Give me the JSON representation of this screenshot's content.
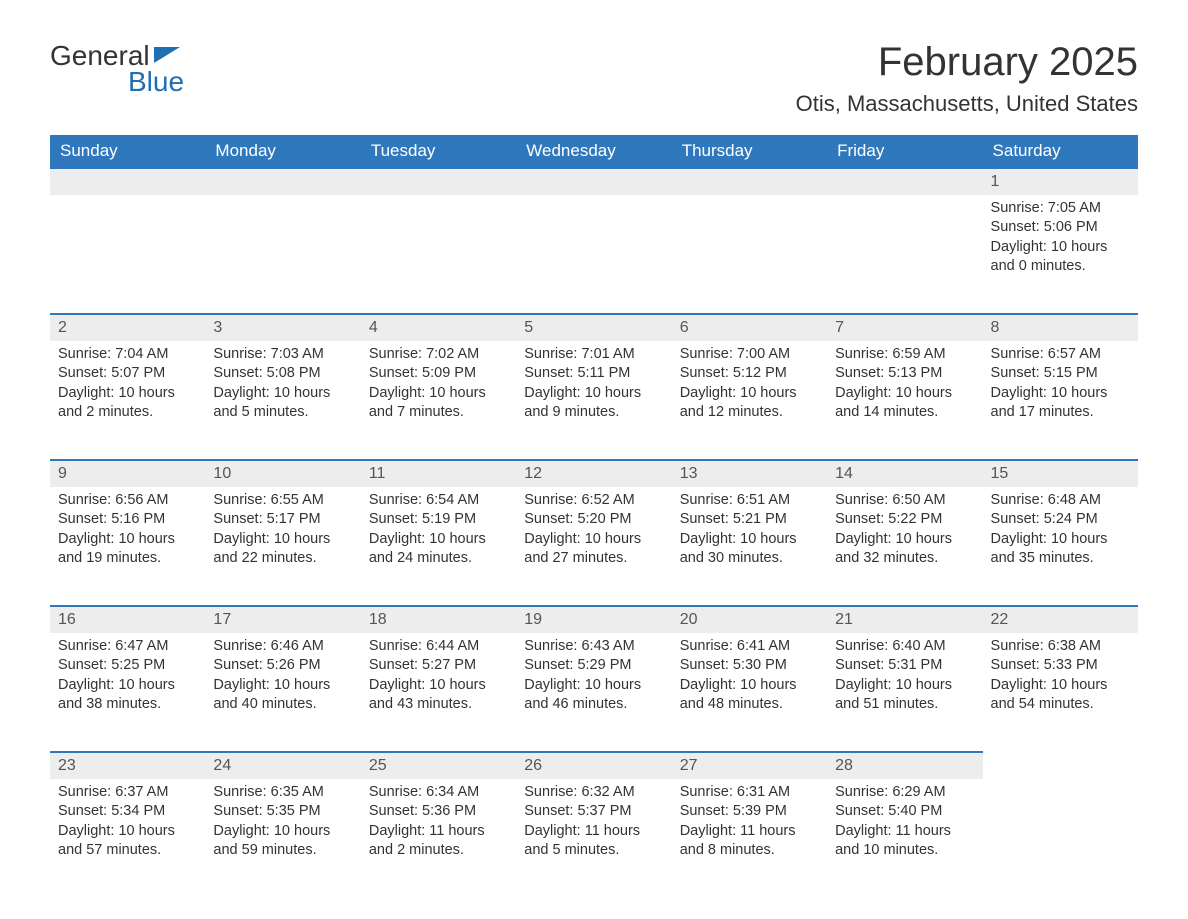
{
  "brand": {
    "word1": "General",
    "word2": "Blue",
    "brand_color": "#1f6fb2"
  },
  "title": "February 2025",
  "location": "Otis, Massachusetts, United States",
  "colors": {
    "header_bg": "#2f78bd",
    "header_text": "#ffffff",
    "row_accent": "#2f78bd",
    "daynum_bg": "#ededed",
    "text": "#333333",
    "background": "#ffffff"
  },
  "day_headers": [
    "Sunday",
    "Monday",
    "Tuesday",
    "Wednesday",
    "Thursday",
    "Friday",
    "Saturday"
  ],
  "weeks": [
    [
      {
        "num": "",
        "sunrise": "",
        "sunset": "",
        "daylight": ""
      },
      {
        "num": "",
        "sunrise": "",
        "sunset": "",
        "daylight": ""
      },
      {
        "num": "",
        "sunrise": "",
        "sunset": "",
        "daylight": ""
      },
      {
        "num": "",
        "sunrise": "",
        "sunset": "",
        "daylight": ""
      },
      {
        "num": "",
        "sunrise": "",
        "sunset": "",
        "daylight": ""
      },
      {
        "num": "",
        "sunrise": "",
        "sunset": "",
        "daylight": ""
      },
      {
        "num": "1",
        "sunrise": "Sunrise: 7:05 AM",
        "sunset": "Sunset: 5:06 PM",
        "daylight": "Daylight: 10 hours and 0 minutes."
      }
    ],
    [
      {
        "num": "2",
        "sunrise": "Sunrise: 7:04 AM",
        "sunset": "Sunset: 5:07 PM",
        "daylight": "Daylight: 10 hours and 2 minutes."
      },
      {
        "num": "3",
        "sunrise": "Sunrise: 7:03 AM",
        "sunset": "Sunset: 5:08 PM",
        "daylight": "Daylight: 10 hours and 5 minutes."
      },
      {
        "num": "4",
        "sunrise": "Sunrise: 7:02 AM",
        "sunset": "Sunset: 5:09 PM",
        "daylight": "Daylight: 10 hours and 7 minutes."
      },
      {
        "num": "5",
        "sunrise": "Sunrise: 7:01 AM",
        "sunset": "Sunset: 5:11 PM",
        "daylight": "Daylight: 10 hours and 9 minutes."
      },
      {
        "num": "6",
        "sunrise": "Sunrise: 7:00 AM",
        "sunset": "Sunset: 5:12 PM",
        "daylight": "Daylight: 10 hours and 12 minutes."
      },
      {
        "num": "7",
        "sunrise": "Sunrise: 6:59 AM",
        "sunset": "Sunset: 5:13 PM",
        "daylight": "Daylight: 10 hours and 14 minutes."
      },
      {
        "num": "8",
        "sunrise": "Sunrise: 6:57 AM",
        "sunset": "Sunset: 5:15 PM",
        "daylight": "Daylight: 10 hours and 17 minutes."
      }
    ],
    [
      {
        "num": "9",
        "sunrise": "Sunrise: 6:56 AM",
        "sunset": "Sunset: 5:16 PM",
        "daylight": "Daylight: 10 hours and 19 minutes."
      },
      {
        "num": "10",
        "sunrise": "Sunrise: 6:55 AM",
        "sunset": "Sunset: 5:17 PM",
        "daylight": "Daylight: 10 hours and 22 minutes."
      },
      {
        "num": "11",
        "sunrise": "Sunrise: 6:54 AM",
        "sunset": "Sunset: 5:19 PM",
        "daylight": "Daylight: 10 hours and 24 minutes."
      },
      {
        "num": "12",
        "sunrise": "Sunrise: 6:52 AM",
        "sunset": "Sunset: 5:20 PM",
        "daylight": "Daylight: 10 hours and 27 minutes."
      },
      {
        "num": "13",
        "sunrise": "Sunrise: 6:51 AM",
        "sunset": "Sunset: 5:21 PM",
        "daylight": "Daylight: 10 hours and 30 minutes."
      },
      {
        "num": "14",
        "sunrise": "Sunrise: 6:50 AM",
        "sunset": "Sunset: 5:22 PM",
        "daylight": "Daylight: 10 hours and 32 minutes."
      },
      {
        "num": "15",
        "sunrise": "Sunrise: 6:48 AM",
        "sunset": "Sunset: 5:24 PM",
        "daylight": "Daylight: 10 hours and 35 minutes."
      }
    ],
    [
      {
        "num": "16",
        "sunrise": "Sunrise: 6:47 AM",
        "sunset": "Sunset: 5:25 PM",
        "daylight": "Daylight: 10 hours and 38 minutes."
      },
      {
        "num": "17",
        "sunrise": "Sunrise: 6:46 AM",
        "sunset": "Sunset: 5:26 PM",
        "daylight": "Daylight: 10 hours and 40 minutes."
      },
      {
        "num": "18",
        "sunrise": "Sunrise: 6:44 AM",
        "sunset": "Sunset: 5:27 PM",
        "daylight": "Daylight: 10 hours and 43 minutes."
      },
      {
        "num": "19",
        "sunrise": "Sunrise: 6:43 AM",
        "sunset": "Sunset: 5:29 PM",
        "daylight": "Daylight: 10 hours and 46 minutes."
      },
      {
        "num": "20",
        "sunrise": "Sunrise: 6:41 AM",
        "sunset": "Sunset: 5:30 PM",
        "daylight": "Daylight: 10 hours and 48 minutes."
      },
      {
        "num": "21",
        "sunrise": "Sunrise: 6:40 AM",
        "sunset": "Sunset: 5:31 PM",
        "daylight": "Daylight: 10 hours and 51 minutes."
      },
      {
        "num": "22",
        "sunrise": "Sunrise: 6:38 AM",
        "sunset": "Sunset: 5:33 PM",
        "daylight": "Daylight: 10 hours and 54 minutes."
      }
    ],
    [
      {
        "num": "23",
        "sunrise": "Sunrise: 6:37 AM",
        "sunset": "Sunset: 5:34 PM",
        "daylight": "Daylight: 10 hours and 57 minutes."
      },
      {
        "num": "24",
        "sunrise": "Sunrise: 6:35 AM",
        "sunset": "Sunset: 5:35 PM",
        "daylight": "Daylight: 10 hours and 59 minutes."
      },
      {
        "num": "25",
        "sunrise": "Sunrise: 6:34 AM",
        "sunset": "Sunset: 5:36 PM",
        "daylight": "Daylight: 11 hours and 2 minutes."
      },
      {
        "num": "26",
        "sunrise": "Sunrise: 6:32 AM",
        "sunset": "Sunset: 5:37 PM",
        "daylight": "Daylight: 11 hours and 5 minutes."
      },
      {
        "num": "27",
        "sunrise": "Sunrise: 6:31 AM",
        "sunset": "Sunset: 5:39 PM",
        "daylight": "Daylight: 11 hours and 8 minutes."
      },
      {
        "num": "28",
        "sunrise": "Sunrise: 6:29 AM",
        "sunset": "Sunset: 5:40 PM",
        "daylight": "Daylight: 11 hours and 10 minutes."
      },
      {
        "num": "",
        "sunrise": "",
        "sunset": "",
        "daylight": ""
      }
    ]
  ]
}
